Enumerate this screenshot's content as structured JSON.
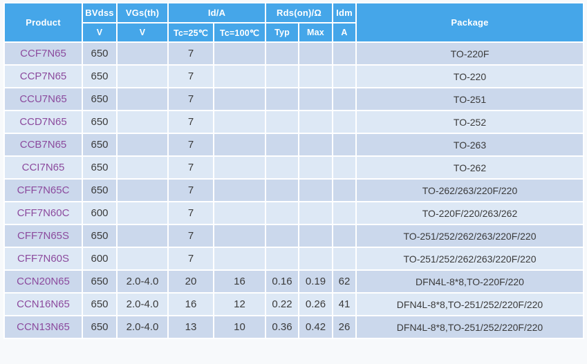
{
  "colors": {
    "page_bg": "#f7f9fb",
    "header_bg": "#45a6e9",
    "header_text": "#ffffff",
    "row_dark": "#cbd8ec",
    "row_light": "#dde8f5",
    "body_text": "#3a3a3a",
    "product_link": "#8b4a9d",
    "cell_border": "#ffffff"
  },
  "table": {
    "header": {
      "product": "Product",
      "bvdss": "BVdss",
      "bvdss_unit": "V",
      "vgsth": "VGs(th)",
      "vgsth_unit": "V",
      "id_group": "Id/A",
      "tc25": "Tc=25℃",
      "tc100": "Tc=100℃",
      "rds_group": "Rds(on)/Ω",
      "typ": "Typ",
      "max": "Max",
      "idm": "Idm",
      "idm_unit": "A",
      "package": "Package"
    },
    "columns": [
      "product",
      "bvdss",
      "vgsth",
      "tc25",
      "tc100",
      "typ",
      "max",
      "idm",
      "package"
    ],
    "rows": [
      {
        "product": "CCF7N65",
        "bvdss": "650",
        "vgsth": "",
        "tc25": "7",
        "tc100": "",
        "typ": "",
        "max": "",
        "idm": "",
        "package": "TO-220F"
      },
      {
        "product": "CCP7N65",
        "bvdss": "650",
        "vgsth": "",
        "tc25": "7",
        "tc100": "",
        "typ": "",
        "max": "",
        "idm": "",
        "package": "TO-220"
      },
      {
        "product": "CCU7N65",
        "bvdss": "650",
        "vgsth": "",
        "tc25": "7",
        "tc100": "",
        "typ": "",
        "max": "",
        "idm": "",
        "package": "TO-251"
      },
      {
        "product": "CCD7N65",
        "bvdss": "650",
        "vgsth": "",
        "tc25": "7",
        "tc100": "",
        "typ": "",
        "max": "",
        "idm": "",
        "package": "TO-252"
      },
      {
        "product": "CCB7N65",
        "bvdss": "650",
        "vgsth": "",
        "tc25": "7",
        "tc100": "",
        "typ": "",
        "max": "",
        "idm": "",
        "package": "TO-263"
      },
      {
        "product": "CCI7N65",
        "bvdss": "650",
        "vgsth": "",
        "tc25": "7",
        "tc100": "",
        "typ": "",
        "max": "",
        "idm": "",
        "package": "TO-262"
      },
      {
        "product": "CFF7N65C",
        "bvdss": "650",
        "vgsth": "",
        "tc25": "7",
        "tc100": "",
        "typ": "",
        "max": "",
        "idm": "",
        "package": "TO-262/263/220F/220"
      },
      {
        "product": "CFF7N60C",
        "bvdss": "600",
        "vgsth": "",
        "tc25": "7",
        "tc100": "",
        "typ": "",
        "max": "",
        "idm": "",
        "package": "TO-220F/220/263/262"
      },
      {
        "product": "CFF7N65S",
        "bvdss": "650",
        "vgsth": "",
        "tc25": "7",
        "tc100": "",
        "typ": "",
        "max": "",
        "idm": "",
        "package": "TO-251/252/262/263/220F/220"
      },
      {
        "product": "CFF7N60S",
        "bvdss": "600",
        "vgsth": "",
        "tc25": "7",
        "tc100": "",
        "typ": "",
        "max": "",
        "idm": "",
        "package": "TO-251/252/262/263/220F/220"
      },
      {
        "product": "CCN20N65",
        "bvdss": "650",
        "vgsth": "2.0-4.0",
        "tc25": "20",
        "tc100": "16",
        "typ": "0.16",
        "max": "0.19",
        "idm": "62",
        "package": "DFN4L-8*8,TO-220F/220"
      },
      {
        "product": "CCN16N65",
        "bvdss": "650",
        "vgsth": "2.0-4.0",
        "tc25": "16",
        "tc100": "12",
        "typ": "0.22",
        "max": "0.26",
        "idm": "41",
        "package": "DFN4L-8*8,TO-251/252/220F/220"
      },
      {
        "product": "CCN13N65",
        "bvdss": "650",
        "vgsth": "2.0-4.0",
        "tc25": "13",
        "tc100": "10",
        "typ": "0.36",
        "max": "0.42",
        "idm": "26",
        "package": "DFN4L-8*8,TO-251/252/220F/220"
      }
    ]
  }
}
